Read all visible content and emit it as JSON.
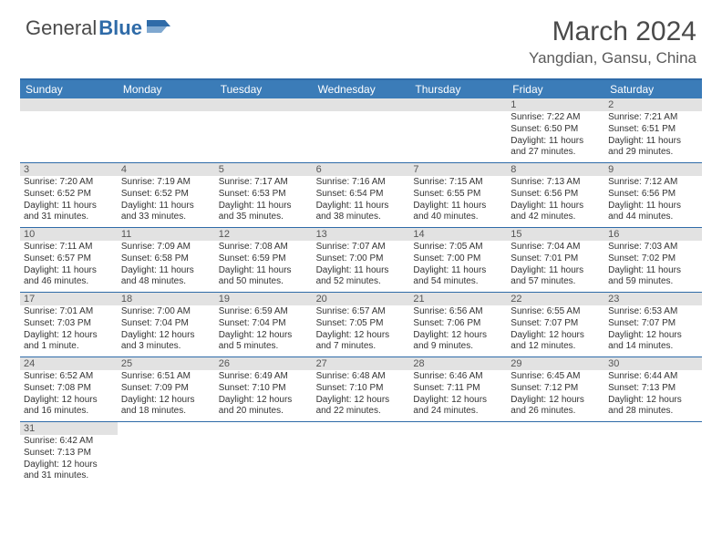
{
  "logo": {
    "general": "General",
    "blue": "Blue"
  },
  "title": "March 2024",
  "location": "Yangdian, Gansu, China",
  "colors": {
    "header_bar": "#3b7cb8",
    "border": "#2f6ba8",
    "daynum_bg": "#e2e2e2",
    "text": "#333333"
  },
  "weekdays": [
    "Sunday",
    "Monday",
    "Tuesday",
    "Wednesday",
    "Thursday",
    "Friday",
    "Saturday"
  ],
  "weeks": [
    [
      {
        "n": "",
        "sunrise": "",
        "sunset": "",
        "daylight": ""
      },
      {
        "n": "",
        "sunrise": "",
        "sunset": "",
        "daylight": ""
      },
      {
        "n": "",
        "sunrise": "",
        "sunset": "",
        "daylight": ""
      },
      {
        "n": "",
        "sunrise": "",
        "sunset": "",
        "daylight": ""
      },
      {
        "n": "",
        "sunrise": "",
        "sunset": "",
        "daylight": ""
      },
      {
        "n": "1",
        "sunrise": "Sunrise: 7:22 AM",
        "sunset": "Sunset: 6:50 PM",
        "daylight": "Daylight: 11 hours and 27 minutes."
      },
      {
        "n": "2",
        "sunrise": "Sunrise: 7:21 AM",
        "sunset": "Sunset: 6:51 PM",
        "daylight": "Daylight: 11 hours and 29 minutes."
      }
    ],
    [
      {
        "n": "3",
        "sunrise": "Sunrise: 7:20 AM",
        "sunset": "Sunset: 6:52 PM",
        "daylight": "Daylight: 11 hours and 31 minutes."
      },
      {
        "n": "4",
        "sunrise": "Sunrise: 7:19 AM",
        "sunset": "Sunset: 6:52 PM",
        "daylight": "Daylight: 11 hours and 33 minutes."
      },
      {
        "n": "5",
        "sunrise": "Sunrise: 7:17 AM",
        "sunset": "Sunset: 6:53 PM",
        "daylight": "Daylight: 11 hours and 35 minutes."
      },
      {
        "n": "6",
        "sunrise": "Sunrise: 7:16 AM",
        "sunset": "Sunset: 6:54 PM",
        "daylight": "Daylight: 11 hours and 38 minutes."
      },
      {
        "n": "7",
        "sunrise": "Sunrise: 7:15 AM",
        "sunset": "Sunset: 6:55 PM",
        "daylight": "Daylight: 11 hours and 40 minutes."
      },
      {
        "n": "8",
        "sunrise": "Sunrise: 7:13 AM",
        "sunset": "Sunset: 6:56 PM",
        "daylight": "Daylight: 11 hours and 42 minutes."
      },
      {
        "n": "9",
        "sunrise": "Sunrise: 7:12 AM",
        "sunset": "Sunset: 6:56 PM",
        "daylight": "Daylight: 11 hours and 44 minutes."
      }
    ],
    [
      {
        "n": "10",
        "sunrise": "Sunrise: 7:11 AM",
        "sunset": "Sunset: 6:57 PM",
        "daylight": "Daylight: 11 hours and 46 minutes."
      },
      {
        "n": "11",
        "sunrise": "Sunrise: 7:09 AM",
        "sunset": "Sunset: 6:58 PM",
        "daylight": "Daylight: 11 hours and 48 minutes."
      },
      {
        "n": "12",
        "sunrise": "Sunrise: 7:08 AM",
        "sunset": "Sunset: 6:59 PM",
        "daylight": "Daylight: 11 hours and 50 minutes."
      },
      {
        "n": "13",
        "sunrise": "Sunrise: 7:07 AM",
        "sunset": "Sunset: 7:00 PM",
        "daylight": "Daylight: 11 hours and 52 minutes."
      },
      {
        "n": "14",
        "sunrise": "Sunrise: 7:05 AM",
        "sunset": "Sunset: 7:00 PM",
        "daylight": "Daylight: 11 hours and 54 minutes."
      },
      {
        "n": "15",
        "sunrise": "Sunrise: 7:04 AM",
        "sunset": "Sunset: 7:01 PM",
        "daylight": "Daylight: 11 hours and 57 minutes."
      },
      {
        "n": "16",
        "sunrise": "Sunrise: 7:03 AM",
        "sunset": "Sunset: 7:02 PM",
        "daylight": "Daylight: 11 hours and 59 minutes."
      }
    ],
    [
      {
        "n": "17",
        "sunrise": "Sunrise: 7:01 AM",
        "sunset": "Sunset: 7:03 PM",
        "daylight": "Daylight: 12 hours and 1 minute."
      },
      {
        "n": "18",
        "sunrise": "Sunrise: 7:00 AM",
        "sunset": "Sunset: 7:04 PM",
        "daylight": "Daylight: 12 hours and 3 minutes."
      },
      {
        "n": "19",
        "sunrise": "Sunrise: 6:59 AM",
        "sunset": "Sunset: 7:04 PM",
        "daylight": "Daylight: 12 hours and 5 minutes."
      },
      {
        "n": "20",
        "sunrise": "Sunrise: 6:57 AM",
        "sunset": "Sunset: 7:05 PM",
        "daylight": "Daylight: 12 hours and 7 minutes."
      },
      {
        "n": "21",
        "sunrise": "Sunrise: 6:56 AM",
        "sunset": "Sunset: 7:06 PM",
        "daylight": "Daylight: 12 hours and 9 minutes."
      },
      {
        "n": "22",
        "sunrise": "Sunrise: 6:55 AM",
        "sunset": "Sunset: 7:07 PM",
        "daylight": "Daylight: 12 hours and 12 minutes."
      },
      {
        "n": "23",
        "sunrise": "Sunrise: 6:53 AM",
        "sunset": "Sunset: 7:07 PM",
        "daylight": "Daylight: 12 hours and 14 minutes."
      }
    ],
    [
      {
        "n": "24",
        "sunrise": "Sunrise: 6:52 AM",
        "sunset": "Sunset: 7:08 PM",
        "daylight": "Daylight: 12 hours and 16 minutes."
      },
      {
        "n": "25",
        "sunrise": "Sunrise: 6:51 AM",
        "sunset": "Sunset: 7:09 PM",
        "daylight": "Daylight: 12 hours and 18 minutes."
      },
      {
        "n": "26",
        "sunrise": "Sunrise: 6:49 AM",
        "sunset": "Sunset: 7:10 PM",
        "daylight": "Daylight: 12 hours and 20 minutes."
      },
      {
        "n": "27",
        "sunrise": "Sunrise: 6:48 AM",
        "sunset": "Sunset: 7:10 PM",
        "daylight": "Daylight: 12 hours and 22 minutes."
      },
      {
        "n": "28",
        "sunrise": "Sunrise: 6:46 AM",
        "sunset": "Sunset: 7:11 PM",
        "daylight": "Daylight: 12 hours and 24 minutes."
      },
      {
        "n": "29",
        "sunrise": "Sunrise: 6:45 AM",
        "sunset": "Sunset: 7:12 PM",
        "daylight": "Daylight: 12 hours and 26 minutes."
      },
      {
        "n": "30",
        "sunrise": "Sunrise: 6:44 AM",
        "sunset": "Sunset: 7:13 PM",
        "daylight": "Daylight: 12 hours and 28 minutes."
      }
    ],
    [
      {
        "n": "31",
        "sunrise": "Sunrise: 6:42 AM",
        "sunset": "Sunset: 7:13 PM",
        "daylight": "Daylight: 12 hours and 31 minutes."
      },
      {
        "n": "",
        "sunrise": "",
        "sunset": "",
        "daylight": ""
      },
      {
        "n": "",
        "sunrise": "",
        "sunset": "",
        "daylight": ""
      },
      {
        "n": "",
        "sunrise": "",
        "sunset": "",
        "daylight": ""
      },
      {
        "n": "",
        "sunrise": "",
        "sunset": "",
        "daylight": ""
      },
      {
        "n": "",
        "sunrise": "",
        "sunset": "",
        "daylight": ""
      },
      {
        "n": "",
        "sunrise": "",
        "sunset": "",
        "daylight": ""
      }
    ]
  ]
}
